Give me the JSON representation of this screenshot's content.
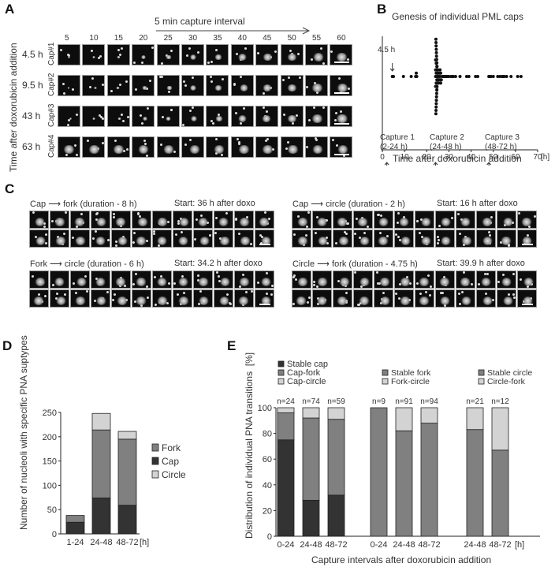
{
  "panels": {
    "A": {
      "letter": "A",
      "header": "5 min capture interval",
      "y_axis_label": "Time after doxorubicin addition",
      "time_points": [
        "5",
        "10",
        "15",
        "20",
        "25",
        "30",
        "35",
        "40",
        "45",
        "50",
        "55",
        "60"
      ],
      "rows": [
        {
          "time": "4.5 h",
          "cap": "Cap#1"
        },
        {
          "time": "9.5 h",
          "cap": "Cap#2"
        },
        {
          "time": "43 h",
          "cap": "Cap#3"
        },
        {
          "time": "63 h",
          "cap": "Cap#4"
        }
      ]
    },
    "B": {
      "letter": "B",
      "annotation": "4.5 h",
      "captures": [
        {
          "label": "Capture 1",
          "range": "(2-24 h)"
        },
        {
          "label": "Capture 2",
          "range": "(24-48 h)"
        },
        {
          "label": "Capture 3",
          "range": "(48-72 h)"
        }
      ]
    },
    "C": {
      "letter": "C",
      "sequences": [
        {
          "transition_from": "Cap",
          "transition_to": "fork (duration - 8 h)",
          "start": "Start:  36 h after doxo"
        },
        {
          "transition_from": "Cap",
          "transition_to": "circle (duration - 2 h)",
          "start": "Start: 16 h after doxo"
        },
        {
          "transition_from": "Fork",
          "transition_to": "circle (duration - 6 h)",
          "start": "Start:  34.2 h after doxo"
        },
        {
          "transition_from": "Circle",
          "transition_to": "fork (duration - 4.75 h)",
          "start": "Start: 39.9 h after doxo"
        }
      ],
      "arrow_glyph": "⟶"
    },
    "D": {
      "letter": "D"
    },
    "E": {
      "letter": "E"
    }
  },
  "chart_data": [
    {
      "panel": "B",
      "type": "scatter",
      "title": "Genesis of individual  PML caps",
      "xlabel": "Time after doxorubicin addition",
      "x_unit": "[h]",
      "xlim": [
        0,
        70
      ],
      "xticks": [
        0,
        10,
        20,
        30,
        40,
        50,
        60,
        70
      ],
      "ylabel": "",
      "grid": false,
      "points_x_hours": [
        4.5,
        5,
        9.5,
        13,
        15,
        15,
        15.5,
        24,
        24,
        24,
        24,
        24,
        24,
        24,
        24,
        24,
        24,
        24.5,
        24.5,
        24.5,
        24.5,
        24.5,
        25,
        25,
        25,
        25,
        25,
        25.5,
        25.5,
        25.5,
        26,
        26,
        26,
        26,
        26,
        27,
        27.5,
        28,
        28.5,
        29,
        29.5,
        30,
        31,
        31.5,
        32,
        33,
        35,
        38,
        39,
        42,
        43,
        48,
        48.5,
        49,
        50,
        52,
        53,
        54,
        54.5,
        55,
        56,
        58,
        61,
        62.5
      ],
      "arrows": [
        {
          "x": 4.5,
          "label": "4.5 h"
        },
        {
          "x": 2,
          "label": "Capture 1 (2-24 h)"
        },
        {
          "x": 24,
          "label": "Capture 2 (24-48 h)"
        },
        {
          "x": 48,
          "label": "Capture 3 (48-72 h)"
        }
      ]
    },
    {
      "panel": "D",
      "type": "bar",
      "stacked": true,
      "title": "",
      "xlabel": "",
      "x_unit": "[h]",
      "ylabel": "Number of nucleoli with specific PNA suptypes",
      "categories": [
        "1-24",
        "24-48",
        "48-72"
      ],
      "ylim": [
        0,
        250
      ],
      "yticks": [
        0,
        50,
        100,
        150,
        200,
        250
      ],
      "series": [
        {
          "name": "Cap",
          "color": "#333333",
          "values": [
            24,
            74,
            59
          ]
        },
        {
          "name": "Fork",
          "color": "#808080",
          "values": [
            14,
            140,
            136
          ]
        },
        {
          "name": "Circle",
          "color": "#d3d3d3",
          "values": [
            0,
            34,
            16
          ]
        }
      ],
      "legend": [
        "Fork",
        "Cap",
        "Circle"
      ],
      "legend_position": "right"
    },
    {
      "panel": "E",
      "type": "bar",
      "stacked": true,
      "title": "",
      "xlabel": "Capture intervals after doxorubicin addition",
      "x_unit": "[h]",
      "ylabel": "Distribution of individual PNA transitions",
      "y_unit": "[%]",
      "ylim": [
        0,
        100
      ],
      "yticks": [
        0,
        20,
        40,
        60,
        80,
        100
      ],
      "groups": [
        {
          "name": "Cap",
          "categories": [
            "0-24",
            "24-48",
            "48-72"
          ],
          "n": [
            "n=24",
            "n=74",
            "n=59"
          ],
          "series": [
            {
              "name": "Stable cap",
              "color": "#333333",
              "values": [
                75,
                28,
                32
              ]
            },
            {
              "name": "Cap-fork",
              "color": "#808080",
              "values": [
                21,
                64,
                59
              ]
            },
            {
              "name": "Cap-circle",
              "color": "#d3d3d3",
              "values": [
                4,
                8,
                9
              ]
            }
          ]
        },
        {
          "name": "Fork",
          "categories": [
            "0-24",
            "24-48",
            "48-72"
          ],
          "n": [
            "n=9",
            "n=91",
            "n=94"
          ],
          "series": [
            {
              "name": "Stable fork",
              "color": "#808080",
              "values": [
                100,
                82,
                88
              ]
            },
            {
              "name": "Fork-circle",
              "color": "#d3d3d3",
              "values": [
                0,
                18,
                12
              ]
            }
          ]
        },
        {
          "name": "Circle",
          "categories": [
            "24-48",
            "48-72"
          ],
          "n": [
            "n=21",
            "n=12"
          ],
          "series": [
            {
              "name": "Stable circle",
              "color": "#808080",
              "values": [
                83,
                67
              ]
            },
            {
              "name": "Circle-fork",
              "color": "#d3d3d3",
              "values": [
                17,
                33
              ]
            }
          ]
        }
      ]
    }
  ]
}
